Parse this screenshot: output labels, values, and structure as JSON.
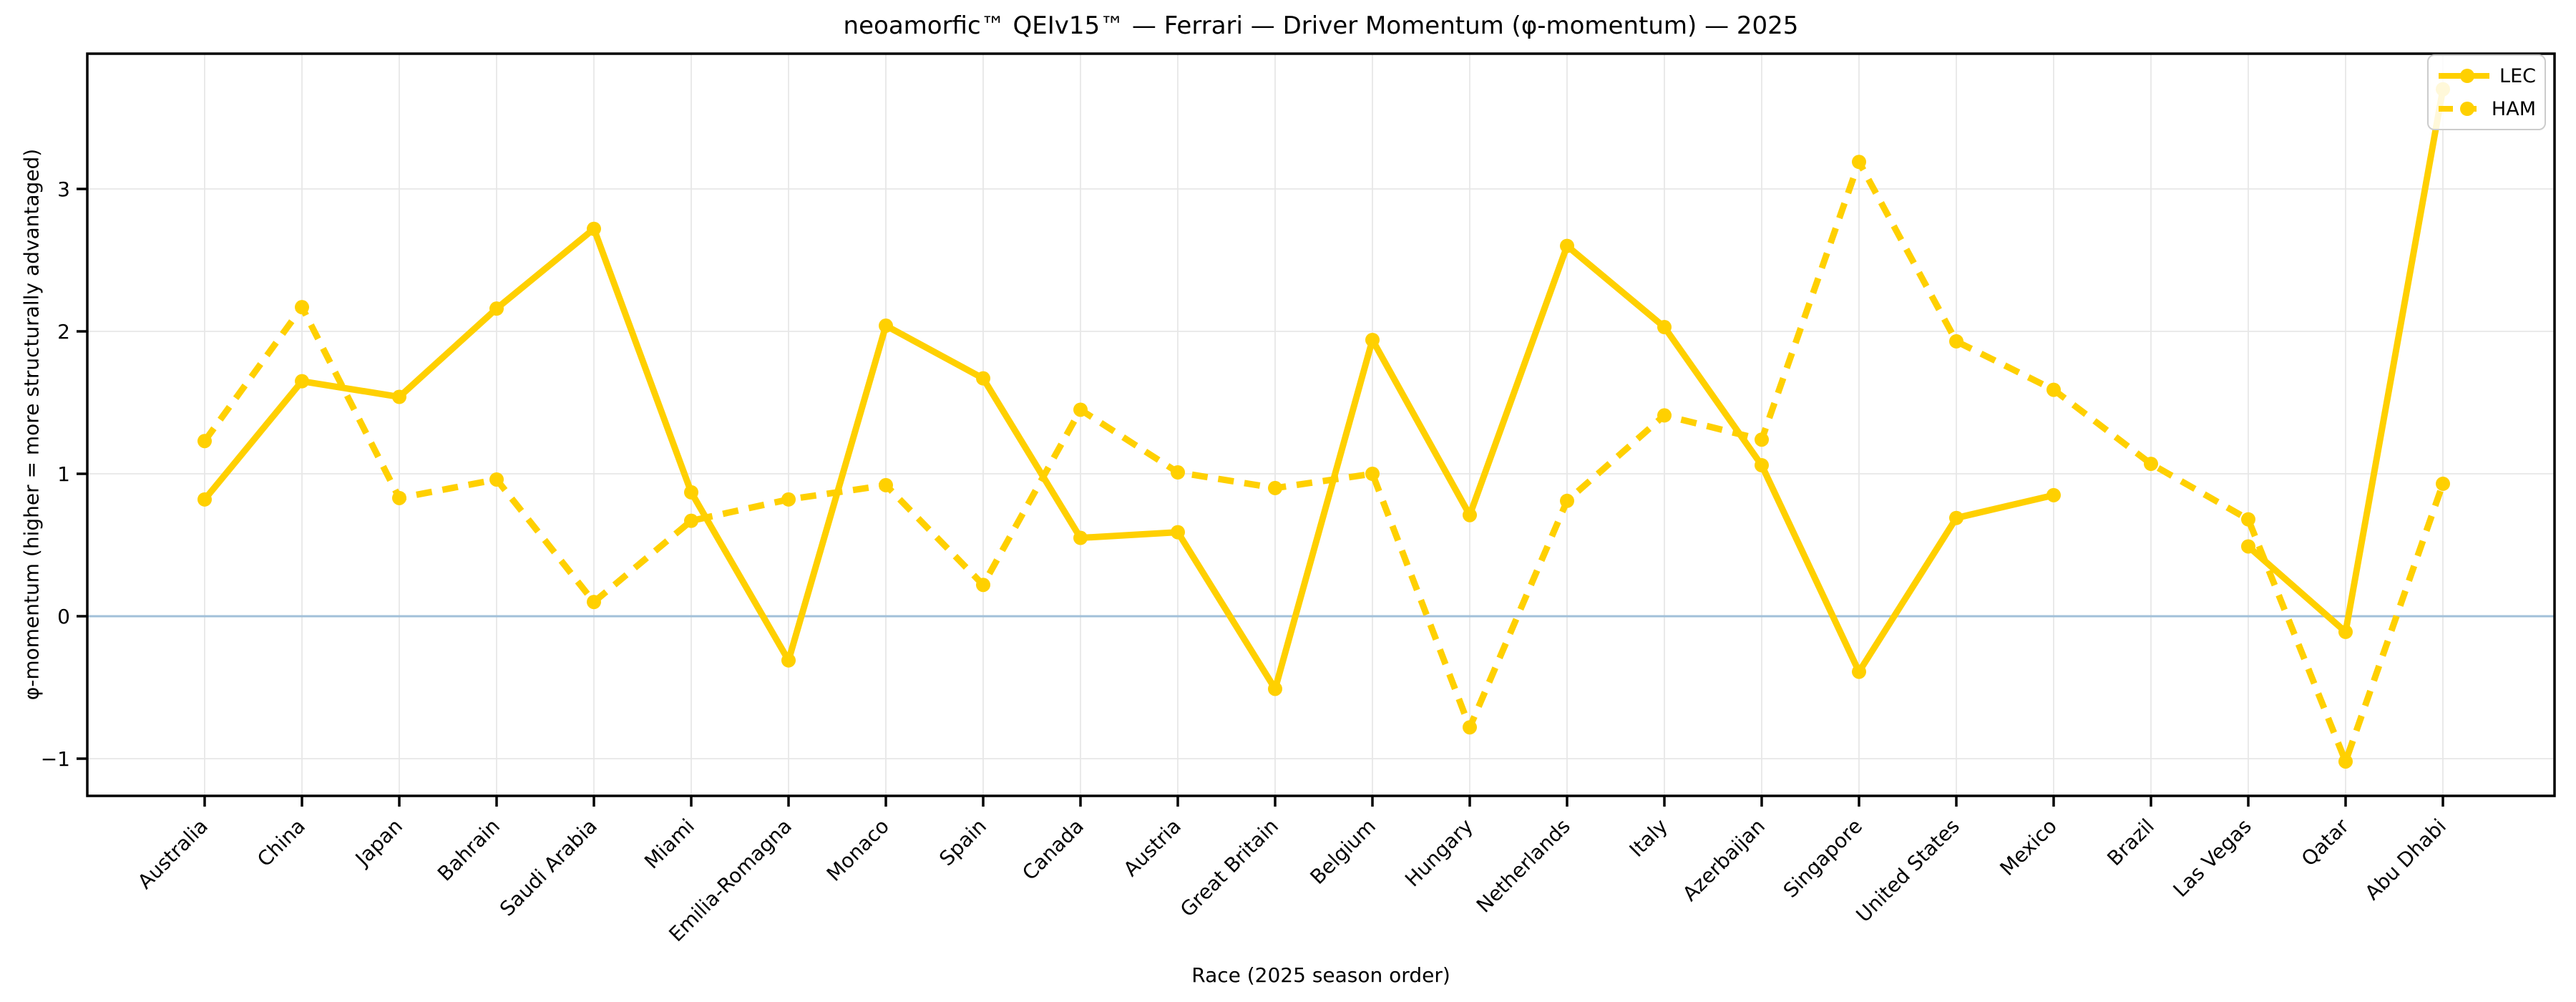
{
  "figure": {
    "title": "neoamorfic™  QEIv15™ — Ferrari — Driver Momentum (φ-momentum) — 2025",
    "xlabel": "Race (2025 season order)",
    "ylabel": "φ-momentum (higher = more structurally advantaged)"
  },
  "legend": {
    "position": "upper right",
    "items": [
      {
        "label": "LEC",
        "style": "solid"
      },
      {
        "label": "HAM",
        "style": "dashed"
      }
    ]
  },
  "colors": {
    "series": "#FFD000",
    "zero_line": "#A2C0D9",
    "grid": "#E7E7E7",
    "spine": "#000000",
    "text": "#000000"
  },
  "chart_data": {
    "type": "line",
    "title": "neoamorfic™  QEIv15™ — Ferrari — Driver Momentum (φ-momentum) — 2025",
    "xlabel": "Race (2025 season order)",
    "ylabel": "φ-momentum (higher = more structurally advantaged)",
    "grid": true,
    "zero_line": true,
    "legend_position": "upper right",
    "ylim": [
      -1.26,
      3.95
    ],
    "yticks": [
      -1,
      0,
      1,
      2,
      3
    ],
    "ytick_labels": [
      "−1",
      "0",
      "1",
      "2",
      "3"
    ],
    "categories": [
      "Australia",
      "China",
      "Japan",
      "Bahrain",
      "Saudi Arabia",
      "Miami",
      "Emilia-Romagna",
      "Monaco",
      "Spain",
      "Canada",
      "Austria",
      "Great Britain",
      "Belgium",
      "Hungary",
      "Netherlands",
      "Italy",
      "Azerbaijan",
      "Singapore",
      "United States",
      "Mexico",
      "Brazil",
      "Las Vegas",
      "Qatar",
      "Abu Dhabi"
    ],
    "series": [
      {
        "name": "LEC",
        "line_style": "solid",
        "color": "#FFD000",
        "values": [
          0.82,
          1.65,
          1.54,
          2.16,
          2.72,
          0.87,
          -0.31,
          2.04,
          1.67,
          0.55,
          0.59,
          -0.51,
          1.94,
          0.71,
          2.6,
          2.03,
          1.06,
          -0.39,
          0.69,
          0.85,
          null,
          0.49,
          -0.11,
          3.7
        ]
      },
      {
        "name": "HAM",
        "line_style": "dashed",
        "color": "#FFD000",
        "values": [
          1.23,
          2.17,
          0.83,
          0.96,
          0.1,
          0.67,
          0.82,
          0.92,
          0.22,
          1.45,
          1.01,
          0.9,
          1.0,
          -0.78,
          0.81,
          1.41,
          1.24,
          3.19,
          1.93,
          1.59,
          1.07,
          0.68,
          -1.02,
          0.93
        ]
      }
    ]
  }
}
